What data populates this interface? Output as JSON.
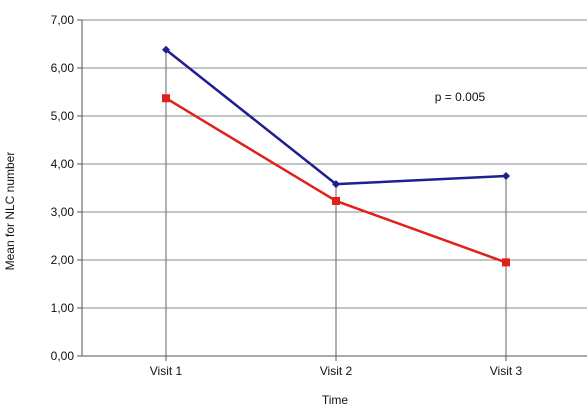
{
  "chart_data": {
    "type": "line",
    "categories": [
      "Visit 1",
      "Visit 2",
      "Visit 3"
    ],
    "series": [
      {
        "values": [
          6.38,
          3.58,
          3.75
        ],
        "color": "#1f1f8f",
        "marker": "diamond"
      },
      {
        "values": [
          5.37,
          3.23,
          1.95
        ],
        "color": "#e0201b",
        "marker": "square"
      }
    ],
    "ylim": [
      0,
      7
    ],
    "yticks": [
      "0,00",
      "1,00",
      "2,00",
      "3,00",
      "4,00",
      "5,00",
      "6,00",
      "7,00"
    ],
    "xlabel": "Time",
    "ylabel": "Mean for NLC number",
    "annotation": "p = 0.005",
    "grid": true
  }
}
